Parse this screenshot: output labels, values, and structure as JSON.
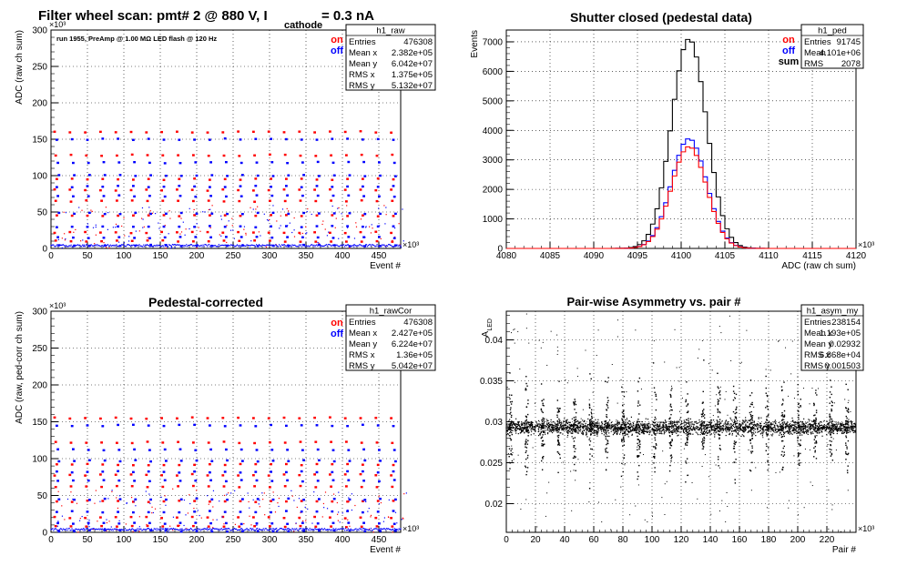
{
  "chart_data": [
    {
      "type": "scatter",
      "title": "Filter wheel scan: pmt#   2 @   880 V, I",
      "title_sub": "cathode",
      "title_tail": "= 0.3 nA",
      "annotation": "run 1955, PreAmp @ 1.00 MΩ  LED flash @  120 Hz",
      "xlabel": "Event #",
      "ylabel": "ADC (raw ch sum)",
      "x_exponent": "×10³",
      "y_exponent": "×10³",
      "xlim": [
        0,
        480
      ],
      "ylim": [
        0,
        300
      ],
      "xticks": [
        "0",
        "50",
        "100",
        "150",
        "200",
        "250",
        "300",
        "350",
        "400",
        "450"
      ],
      "yticks": [
        "0",
        "50",
        "100",
        "150",
        "200",
        "250",
        "300"
      ],
      "legend": [
        {
          "name": "on",
          "color": "#ff0000"
        },
        {
          "name": "off",
          "color": "#0000ff"
        }
      ],
      "stats": {
        "name": "h1_raw",
        "rows": [
          [
            "Entries",
            "476308"
          ],
          [
            "Mean x",
            "2.382e+05"
          ],
          [
            "Mean y",
            "6.042e+07"
          ],
          [
            "RMS x",
            "1.375e+05"
          ],
          [
            "RMS y",
            "5.132e+07"
          ]
        ]
      },
      "series": [
        {
          "name": "on",
          "color": "#ff0000",
          "levels": [
            160,
            128,
            95,
            80,
            65,
            45,
            22,
            10
          ]
        },
        {
          "name": "off",
          "color": "#0000ff",
          "levels": [
            150,
            118,
            100,
            85,
            72,
            48,
            30,
            15,
            4
          ]
        }
      ],
      "steps": 23,
      "step_x0": 5,
      "step_dx": 21
    },
    {
      "type": "bar",
      "title": "Shutter closed (pedestal data)",
      "xlabel": "ADC (raw ch sum)",
      "ylabel": "Events",
      "x_exponent": "×10³",
      "xlim": [
        4080,
        4120
      ],
      "ylim": [
        0,
        7400
      ],
      "xticks": [
        "4080",
        "4085",
        "4090",
        "4095",
        "4100",
        "4105",
        "4110",
        "4115",
        "4120"
      ],
      "yticks": [
        "0",
        "1000",
        "2000",
        "3000",
        "4000",
        "5000",
        "6000",
        "7000"
      ],
      "legend": [
        {
          "name": "on",
          "color": "#ff0000"
        },
        {
          "name": "off",
          "color": "#0000ff"
        },
        {
          "name": "sum",
          "color": "#000000"
        }
      ],
      "stats": {
        "name": "h1_ped",
        "rows": [
          [
            "Entries",
            "91745"
          ],
          [
            "Mean",
            "4.101e+06"
          ],
          [
            "RMS",
            "2078"
          ]
        ]
      },
      "series": [
        {
          "name": "sum",
          "color": "#000000",
          "mean": 4100.9,
          "sigma": 2.0,
          "peak": 7100
        },
        {
          "name": "off",
          "color": "#0000ff",
          "mean": 4100.9,
          "sigma": 2.0,
          "peak": 3720
        },
        {
          "name": "on",
          "color": "#ff0000",
          "mean": 4100.9,
          "sigma": 2.0,
          "peak": 3450
        }
      ],
      "bin_width": 0.5
    },
    {
      "type": "scatter",
      "title": "Pedestal-corrected",
      "xlabel": "Event #",
      "ylabel": "ADC (raw, ped-corr ch sum)",
      "x_exponent": "×10³",
      "y_exponent": "×10³",
      "xlim": [
        0,
        480
      ],
      "ylim": [
        0,
        300
      ],
      "xticks": [
        "0",
        "50",
        "100",
        "150",
        "200",
        "250",
        "300",
        "350",
        "400",
        "450"
      ],
      "yticks": [
        "0",
        "50",
        "100",
        "150",
        "200",
        "250",
        "300"
      ],
      "legend": [
        {
          "name": "on",
          "color": "#ff0000"
        },
        {
          "name": "off",
          "color": "#0000ff"
        }
      ],
      "stats": {
        "name": "h1_rawCor",
        "rows": [
          [
            "Entries",
            "476308"
          ],
          [
            "Mean x",
            "2.427e+05"
          ],
          [
            "Mean y",
            "6.224e+07"
          ],
          [
            "RMS x",
            "1.36e+05"
          ],
          [
            "RMS y",
            "5.042e+07"
          ]
        ]
      },
      "series": [
        {
          "name": "on",
          "color": "#ff0000",
          "levels": [
            155,
            122,
            92,
            78,
            62,
            42,
            20,
            8
          ]
        },
        {
          "name": "off",
          "color": "#0000ff",
          "levels": [
            145,
            112,
            97,
            82,
            70,
            45,
            28,
            12,
            2
          ]
        }
      ],
      "steps": 23,
      "step_x0": 5,
      "step_dx": 21
    },
    {
      "type": "scatter",
      "title": "Pair-wise Asymmetry vs. pair #",
      "xlabel": "Pair #",
      "ylabel": "A",
      "ylabel_sub": "LED",
      "x_exponent": "×10³",
      "xlim": [
        0,
        240
      ],
      "ylim": [
        0.0165,
        0.0435
      ],
      "xticks": [
        "0",
        "20",
        "40",
        "60",
        "80",
        "100",
        "120",
        "140",
        "160",
        "180",
        "200",
        "220"
      ],
      "yticks": [
        "0.02",
        "0.025",
        "0.03",
        "0.035",
        "0.04"
      ],
      "ytick_values": [
        0.02,
        0.025,
        0.03,
        0.035,
        0.04
      ],
      "stats": {
        "name": "h1_asym_my",
        "rows": [
          [
            "Entries",
            "238154"
          ],
          [
            "Mean x",
            "1.193e+05"
          ],
          [
            "Mean y",
            "0.02932"
          ],
          [
            "RMS x",
            "6.868e+04"
          ],
          [
            "RMS y",
            "0.001503"
          ]
        ]
      },
      "band_center": 0.0293,
      "band_halfwidth": 0.0012,
      "spike_x": [
        3,
        14,
        25,
        36,
        47,
        58,
        69,
        80,
        91,
        102,
        113,
        124,
        135,
        146,
        157,
        168,
        179,
        190,
        201,
        212,
        223,
        234
      ]
    }
  ]
}
